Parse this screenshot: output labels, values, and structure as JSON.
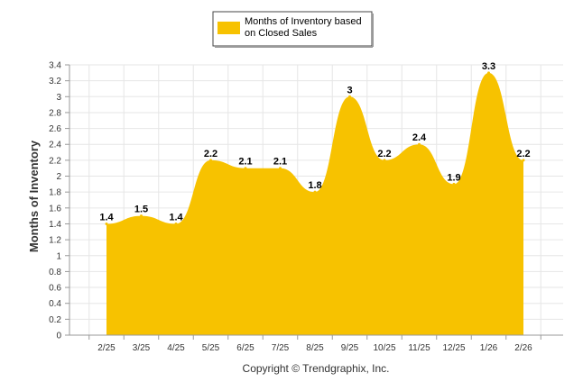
{
  "chart_data": {
    "type": "area",
    "title": "",
    "xlabel": "",
    "ylabel": "Months of Inventory",
    "categories": [
      "2/25",
      "3/25",
      "4/25",
      "5/25",
      "6/25",
      "7/25",
      "8/25",
      "9/25",
      "10/25",
      "11/25",
      "12/25",
      "1/26",
      "2/26"
    ],
    "series": [
      {
        "name": "Months of Inventory based on Closed Sales",
        "values": [
          1.4,
          1.5,
          1.4,
          2.2,
          2.1,
          2.1,
          1.8,
          3,
          2.2,
          2.4,
          1.9,
          3.3,
          2.2
        ],
        "color": "#F7C200"
      }
    ],
    "value_labels": [
      "1.4",
      "1.5",
      "1.4",
      "2.2",
      "2.1",
      "2.1",
      "1.8",
      "3",
      "2.2",
      "2.4",
      "1.9",
      "3.3",
      "2.2"
    ],
    "ylim": [
      0,
      3.4
    ],
    "yticks": [
      "0",
      "0.2",
      "0.4",
      "0.6",
      "0.8",
      "1",
      "1.2",
      "1.4",
      "1.6",
      "1.8",
      "2",
      "2.2",
      "2.4",
      "2.6",
      "2.8",
      "3",
      "3.2",
      "3.4"
    ],
    "grid": true,
    "legend": {
      "position": "top-center",
      "line1": "Months of Inventory based",
      "line2": "on Closed Sales"
    }
  },
  "footer": {
    "copyright": "Copyright © Trendgraphix, Inc."
  }
}
